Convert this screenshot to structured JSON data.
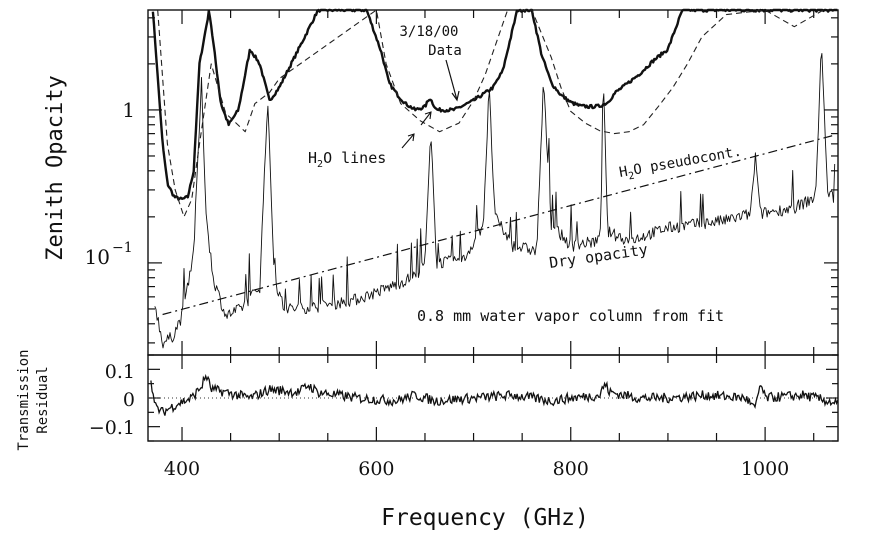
{
  "chart_data": [
    {
      "type": "line",
      "panel": "top",
      "ylabel": "Zenith Opacity",
      "xlabel": "",
      "yscale": "log",
      "xlim": [
        365,
        1075
      ],
      "ylim": [
        0.025,
        4.5
      ],
      "y_tick_labels": [
        {
          "value": 1,
          "label": "1"
        },
        {
          "value": 0.1,
          "label": "10",
          "exponent": "−1"
        }
      ],
      "annotations": {
        "data_date": "3/18/00",
        "data_word": "Data",
        "h2o_lines_prefix": "H",
        "h2o_lines_sub": "2",
        "h2o_lines_suffix": "O lines",
        "pseudocont_prefix": "H",
        "pseudocont_sub": "2",
        "pseudocont_suffix": "O pseudocont.",
        "dry": "Dry opacity",
        "column": "0.8 mm water vapor column from fit"
      },
      "series": [
        {
          "role": "data",
          "style": "thick-solid",
          "x": [
            370,
            380,
            385,
            392,
            400,
            406,
            412,
            418,
            428,
            440,
            448,
            458,
            470,
            480,
            490,
            500,
            520,
            540,
            590,
            605,
            613,
            622,
            630,
            640,
            650,
            655,
            662,
            680,
            700,
            720,
            730,
            745,
            760,
            770,
            780,
            790,
            800,
            810,
            820,
            830,
            838,
            846,
            856,
            870,
            885,
            900,
            915,
            1030,
            1075
          ],
          "y": [
            4.5,
            0.6,
            0.33,
            0.27,
            0.26,
            0.27,
            0.4,
            2.0,
            4.5,
            1.1,
            0.8,
            1.0,
            2.5,
            2.0,
            1.15,
            1.4,
            2.5,
            4.5,
            4.5,
            2.4,
            1.5,
            1.25,
            1.1,
            1.0,
            1.05,
            1.2,
            1.0,
            1.0,
            1.15,
            1.4,
            1.8,
            4.5,
            4.5,
            2.3,
            1.5,
            1.25,
            1.12,
            1.06,
            1.05,
            1.06,
            1.12,
            1.3,
            1.45,
            1.7,
            2.1,
            2.5,
            4.5,
            4.5,
            4.5
          ]
        },
        {
          "role": "h2o-lines-model",
          "style": "dashed",
          "x": [
            375,
            385,
            393,
            402,
            410,
            418,
            430,
            445,
            465,
            475,
            490,
            500,
            600,
            610,
            625,
            645,
            665,
            685,
            700,
            712,
            735,
            760,
            780,
            790,
            800,
            815,
            830,
            845,
            860,
            875,
            890,
            905,
            920,
            935,
            960,
            1000,
            1030,
            1060
          ],
          "y": [
            4.5,
            0.6,
            0.3,
            0.2,
            0.26,
            0.6,
            2.0,
            0.95,
            0.72,
            1.1,
            1.3,
            1.6,
            4.5,
            2.0,
            1.1,
            0.85,
            0.72,
            0.82,
            1.15,
            1.7,
            4.5,
            4.5,
            2.2,
            1.4,
            0.98,
            0.82,
            0.73,
            0.7,
            0.72,
            0.8,
            1.05,
            1.4,
            2.0,
            3.0,
            4.2,
            4.5,
            3.5,
            4.5
          ]
        },
        {
          "role": "h2o-pseudocont",
          "style": "dash-dot",
          "x": [
            380,
            1070
          ],
          "y": [
            0.046,
            0.68
          ]
        },
        {
          "role": "dry-opacity",
          "style": "thin-solid",
          "x": [
            372,
            380,
            390,
            400,
            412,
            420,
            425,
            432,
            445,
            460,
            480,
            488,
            495,
            505,
            540,
            580,
            610,
            640,
            650,
            656,
            662,
            690,
            710,
            716,
            722,
            740,
            765,
            772,
            780,
            800,
            830,
            834,
            838,
            860,
            900,
            960,
            985,
            990,
            995,
            1030,
            1052,
            1058,
            1064,
            1072
          ],
          "y": [
            0.055,
            0.03,
            0.033,
            0.045,
            0.12,
            1.5,
            0.2,
            0.08,
            0.045,
            0.05,
            0.07,
            1.2,
            0.08,
            0.05,
            0.052,
            0.058,
            0.068,
            0.082,
            0.1,
            0.7,
            0.1,
            0.105,
            0.18,
            1.4,
            0.2,
            0.13,
            0.12,
            1.5,
            0.18,
            0.13,
            0.14,
            1.2,
            0.16,
            0.14,
            0.17,
            0.19,
            0.21,
            0.5,
            0.21,
            0.23,
            0.27,
            2.8,
            0.3,
            0.26
          ]
        }
      ]
    },
    {
      "type": "line",
      "panel": "bottom",
      "ylabel_line1": "Transmission",
      "ylabel_line2": "Residual",
      "xlabel": "Frequency (GHz)",
      "xlim": [
        365,
        1075
      ],
      "ylim": [
        -0.15,
        0.15
      ],
      "yticks": [
        0.1,
        0,
        -0.1
      ],
      "y_tick_labels": [
        "0.1",
        "0",
        "−0.1"
      ],
      "xticks": [
        400,
        600,
        800,
        1000
      ],
      "x_tick_labels": [
        "400",
        "600",
        "800",
        "1000"
      ],
      "series": [
        {
          "role": "residual",
          "style": "solid",
          "x": [
            368,
            372,
            380,
            395,
            410,
            420,
            425,
            430,
            445,
            470,
            490,
            520,
            530,
            540,
            580,
            620,
            640,
            660,
            700,
            740,
            780,
            800,
            830,
            835,
            840,
            870,
            900,
            940,
            980,
            990,
            995,
            1000,
            1040,
            1075
          ],
          "y": [
            0.07,
            -0.03,
            -0.05,
            -0.02,
            0.0,
            0.04,
            0.08,
            0.03,
            0.02,
            0.0,
            0.03,
            0.02,
            0.045,
            0.02,
            0.0,
            -0.01,
            0.01,
            -0.01,
            0.0,
            0.01,
            -0.01,
            0.0,
            0.01,
            0.05,
            0.02,
            0.0,
            0.0,
            0.01,
            0.0,
            -0.04,
            0.05,
            0.0,
            0.01,
            -0.02
          ]
        },
        {
          "role": "zero-reference",
          "style": "dotted",
          "x": [
            365,
            1075
          ],
          "y": [
            0,
            0
          ]
        }
      ]
    }
  ]
}
